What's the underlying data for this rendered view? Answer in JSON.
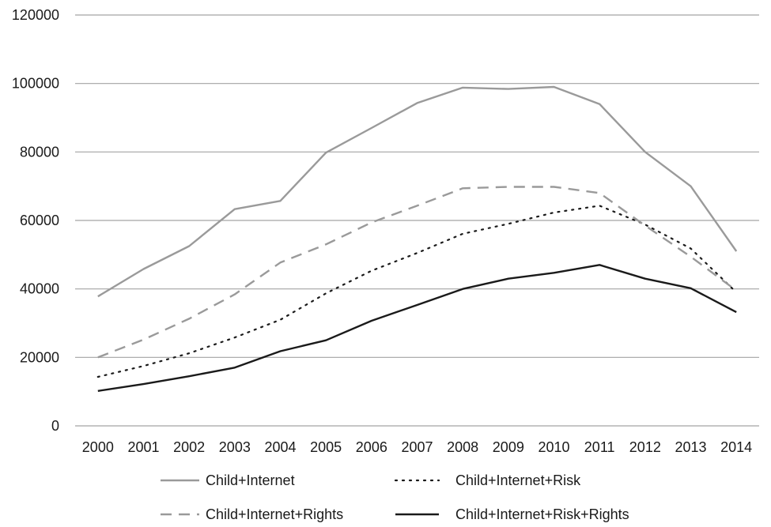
{
  "chart_data": {
    "type": "line",
    "title": "",
    "xlabel": "",
    "ylabel": "",
    "categories": [
      "2000",
      "2001",
      "2002",
      "2003",
      "2004",
      "2005",
      "2006",
      "2007",
      "2008",
      "2009",
      "2010",
      "2011",
      "2012",
      "2013",
      "2014"
    ],
    "ylim": [
      0,
      120000
    ],
    "yticks": [
      "0",
      "20000",
      "40000",
      "60000",
      "80000",
      "100000",
      "120000"
    ],
    "grid": "horizontal",
    "legend_placement": "bottom",
    "series": [
      {
        "name": "Child+Internet",
        "style": "solid",
        "color": "#9a9a9a",
        "values": [
          37800,
          45800,
          52500,
          63300,
          65700,
          79800,
          87000,
          94300,
          98800,
          98400,
          99000,
          94000,
          80000,
          70000,
          51000
        ]
      },
      {
        "name": "Child+Internet+Risk",
        "style": "dotted",
        "color": "#1a1a1a",
        "values": [
          14300,
          17500,
          21200,
          25800,
          31000,
          38700,
          45300,
          50500,
          56100,
          59000,
          62300,
          64300,
          58800,
          51800,
          39000
        ]
      },
      {
        "name": "Child+Internet+Rights",
        "style": "dashed",
        "color": "#9a9a9a",
        "values": [
          20000,
          25200,
          31300,
          38400,
          47700,
          53000,
          59400,
          64300,
          69400,
          69800,
          69800,
          68000,
          58500,
          49400,
          39500
        ]
      },
      {
        "name": "Child+Internet+Risk+Rights",
        "style": "solid",
        "color": "#1a1a1a",
        "values": [
          10200,
          12200,
          14500,
          17000,
          21800,
          25000,
          30700,
          35300,
          40000,
          43000,
          44700,
          47000,
          43000,
          40200,
          33200
        ]
      }
    ]
  }
}
